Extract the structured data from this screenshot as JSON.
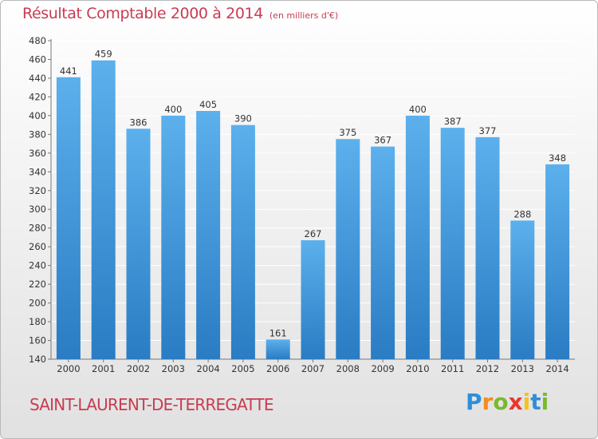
{
  "header": {
    "title": "Résultat Comptable 2000 à 2014",
    "subtitle": "(en milliers d'€)"
  },
  "footer": {
    "commune": "SAINT-LAURENT-DE-TERREGATTE",
    "logo_text": "Proxiti",
    "logo_letters": [
      {
        "ch": "P",
        "color": "#2f8fd8"
      },
      {
        "ch": "r",
        "color": "#f28c1e"
      },
      {
        "ch": "o",
        "color": "#7cb82f"
      },
      {
        "ch": "x",
        "color": "#e8382c"
      },
      {
        "ch": "i",
        "color": "#f5c31c"
      },
      {
        "ch": "t",
        "color": "#2f8fd8"
      },
      {
        "ch": "i",
        "color": "#7cb82f"
      }
    ]
  },
  "colors": {
    "title": "#c83c52",
    "bar_top": "#5cb0ec",
    "bar_bottom": "#2a7cc3",
    "grid": "#ffffff",
    "axis_text": "#333333"
  },
  "chart_data": {
    "type": "bar",
    "title": "Résultat Comptable 2000 à 2014",
    "subtitle": "(en milliers d'€)",
    "categories": [
      "2000",
      "2001",
      "2002",
      "2003",
      "2004",
      "2005",
      "2006",
      "2007",
      "2008",
      "2009",
      "2010",
      "2011",
      "2012",
      "2013",
      "2014"
    ],
    "values": [
      441,
      459,
      386,
      400,
      405,
      390,
      161,
      267,
      375,
      367,
      400,
      387,
      377,
      288,
      348
    ],
    "data_labels": [
      "441",
      "459",
      "386",
      "400",
      "405",
      "390",
      "161",
      "267",
      "375",
      "367",
      "400",
      "387",
      "377",
      "288",
      "348"
    ],
    "ylim": [
      140,
      480
    ],
    "yticks": [
      140,
      160,
      180,
      200,
      220,
      240,
      260,
      280,
      300,
      320,
      340,
      360,
      380,
      400,
      420,
      440,
      460,
      480
    ],
    "grid": true,
    "xlabel": "",
    "ylabel": ""
  }
}
